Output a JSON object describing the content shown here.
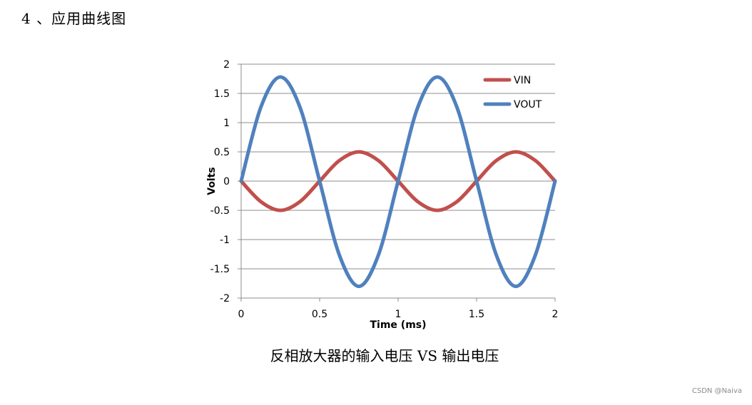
{
  "document": {
    "heading": "4 、应用曲线图",
    "caption": "反相放大器的输入电压 VS 输出电压",
    "watermark": "CSDN @Naiva"
  },
  "chart_data": {
    "type": "line",
    "title": "",
    "xlabel": "Time (ms)",
    "ylabel": "Volts",
    "xlim": [
      0,
      2
    ],
    "ylim": [
      -2,
      2
    ],
    "x_ticks": [
      "0",
      "0.5",
      "1",
      "1.5",
      "2"
    ],
    "y_ticks": [
      "2",
      "1.5",
      "1",
      "0.5",
      "0",
      "-0.5",
      "-1",
      "-1.5",
      "-2"
    ],
    "grid": "horizontal",
    "legend_position": "top-right",
    "series": [
      {
        "name": "VIN",
        "color": "#c0504d",
        "x": [
          0,
          0.125,
          0.25,
          0.375,
          0.5,
          0.625,
          0.75,
          0.875,
          1.0,
          1.125,
          1.25,
          1.375,
          1.5,
          1.625,
          1.75,
          1.875,
          2.0
        ],
        "values": [
          0,
          -0.35,
          -0.5,
          -0.35,
          0,
          0.35,
          0.5,
          0.35,
          0,
          -0.35,
          -0.5,
          -0.35,
          0,
          0.35,
          0.5,
          0.35,
          0
        ]
      },
      {
        "name": "VOUT",
        "color": "#4f81bd",
        "x": [
          0,
          0.125,
          0.25,
          0.375,
          0.5,
          0.625,
          0.75,
          0.875,
          1.0,
          1.125,
          1.25,
          1.375,
          1.5,
          1.625,
          1.75,
          1.875,
          2.0
        ],
        "values": [
          0,
          1.26,
          1.78,
          1.26,
          0,
          -1.26,
          -1.8,
          -1.26,
          0,
          1.26,
          1.78,
          1.26,
          0,
          -1.26,
          -1.8,
          -1.26,
          0
        ]
      }
    ]
  }
}
